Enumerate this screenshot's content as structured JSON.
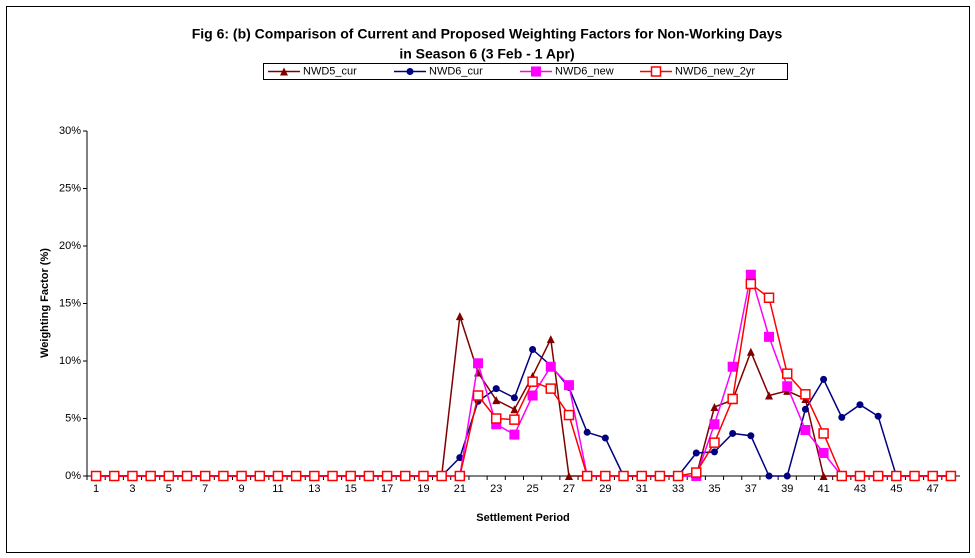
{
  "chart_data": {
    "type": "line",
    "title": [
      "Fig 6: (b) Comparison of Current and Proposed Weighting Factors for Non-Working Days",
      "in Season 6 (3 Feb - 1 Apr)"
    ],
    "x_label": "Settlement Period",
    "y_label": "Weighting Factor (%)",
    "categories": [
      "1",
      null,
      "3",
      null,
      "5",
      null,
      "7",
      null,
      "9",
      null,
      "11",
      null,
      "13",
      null,
      "15",
      null,
      "17",
      null,
      "19",
      null,
      "21",
      null,
      "23",
      null,
      "25",
      null,
      "27",
      null,
      "29",
      null,
      "31",
      null,
      "33",
      null,
      "35",
      null,
      "37",
      null,
      "39",
      null,
      "41",
      null,
      "43",
      null,
      "45",
      null,
      "47",
      null
    ],
    "ylim": [
      0,
      30
    ],
    "yticks": [
      {
        "value": 0,
        "label": "0%"
      },
      {
        "value": 5,
        "label": "5%"
      },
      {
        "value": 10,
        "label": "10%"
      },
      {
        "value": 15,
        "label": "15%"
      },
      {
        "value": 20,
        "label": "20%"
      },
      {
        "value": 25,
        "label": "25%"
      },
      {
        "value": 30,
        "label": "30%"
      }
    ],
    "grid": false,
    "legend": "top",
    "series": [
      {
        "name": "NWD5_cur",
        "color": "#800000",
        "marker": "triangle",
        "values": [
          0,
          0,
          0,
          0,
          0,
          0,
          0,
          0,
          0,
          0,
          0,
          0,
          0,
          0,
          0,
          0,
          0,
          0,
          0,
          0,
          13.9,
          9.0,
          6.6,
          5.8,
          8.7,
          11.9,
          0,
          0,
          0,
          0,
          0,
          0,
          0,
          0,
          6.0,
          6.6,
          10.8,
          7.0,
          7.4,
          6.7,
          0,
          0,
          0,
          0,
          0,
          0,
          0,
          0
        ]
      },
      {
        "name": "NWD6_cur",
        "color": "#000080",
        "marker": "circle",
        "values": [
          0,
          0,
          0,
          0,
          0,
          0,
          0,
          0,
          0,
          0,
          0,
          0,
          0,
          0,
          0,
          0,
          0,
          0,
          0,
          0,
          1.6,
          6.5,
          7.6,
          6.8,
          11.0,
          9.6,
          7.7,
          3.8,
          3.3,
          0,
          0,
          0,
          0,
          2.0,
          2.1,
          3.7,
          3.5,
          0,
          0,
          5.8,
          8.4,
          5.1,
          6.2,
          5.2,
          0,
          0,
          0,
          0
        ]
      },
      {
        "name": "NWD6_new",
        "color": "#ff00ff",
        "marker": "square",
        "values": [
          0,
          0,
          0,
          0,
          0,
          0,
          0,
          0,
          0,
          0,
          0,
          0,
          0,
          0,
          0,
          0,
          0,
          0,
          0,
          0,
          0,
          9.8,
          4.5,
          3.6,
          7.0,
          9.5,
          7.9,
          0,
          0,
          0,
          0,
          0,
          0,
          0,
          4.5,
          9.5,
          17.5,
          12.1,
          7.8,
          4.0,
          2.0,
          0,
          0,
          0,
          0,
          0,
          0,
          0
        ]
      },
      {
        "name": "NWD6_new_2yr",
        "color": "#ff0000",
        "marker": "open-square",
        "values": [
          0,
          0,
          0,
          0,
          0,
          0,
          0,
          0,
          0,
          0,
          0,
          0,
          0,
          0,
          0,
          0,
          0,
          0,
          0,
          0,
          0,
          7.0,
          5.0,
          4.9,
          8.2,
          7.6,
          5.3,
          0,
          0,
          0,
          0,
          0,
          0,
          0.3,
          2.9,
          6.7,
          16.7,
          15.5,
          8.9,
          7.1,
          3.7,
          0,
          0,
          0,
          0,
          0,
          0,
          0
        ]
      }
    ]
  }
}
